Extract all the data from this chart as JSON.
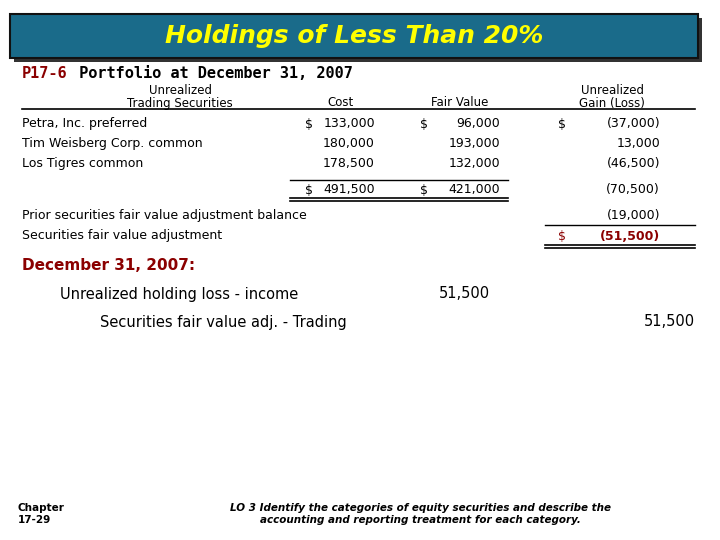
{
  "title": "Holdings of Less Than 20%",
  "title_bg_color": "#1a6b8a",
  "title_text_color": "#ffff00",
  "title_shadow_color": "#333333",
  "subtitle_label": "P17-6",
  "subtitle_text": " Portfolio at December 31, 2007",
  "subtitle_label_color": "#8b0000",
  "subtitle_text_color": "#000000",
  "bg_color": "#ffffff",
  "header_col1": "Trading Securities",
  "header_col2": "Cost",
  "header_col3": "Fair Value",
  "header_col4_line1": "Unrealized",
  "header_col4_line2": "Gain (Loss)",
  "rows": [
    [
      "Petra, Inc. preferred",
      "$",
      "133,000",
      "$",
      "96,000",
      "$",
      "(37,000)"
    ],
    [
      "Tim Weisberg Corp. common",
      "",
      "180,000",
      "",
      "193,000",
      "",
      "13,000"
    ],
    [
      "Los Tigres common",
      "",
      "178,500",
      "",
      "132,000",
      "",
      "(46,500)"
    ]
  ],
  "total_row": [
    "",
    "$",
    "491,500",
    "$",
    "421,000",
    "",
    "(70,500)"
  ],
  "adj_row1_label": "Prior securities fair value adjustment balance",
  "adj_row1_value": "(19,000)",
  "adj_row2_label": "Securities fair value adjustment",
  "adj_row2_dollar": "$",
  "adj_row2_value": "(51,500)",
  "section2_header": "December 31, 2007:",
  "section2_header_color": "#8b0000",
  "section2_row1_label": "Unrealized holding loss - income",
  "section2_row1_value": "51,500",
  "section2_row2_label": "Securities fair value adj. - Trading",
  "section2_row2_value": "51,500",
  "footer_left_line1": "Chapter",
  "footer_left_line2": "17-29",
  "footer_right": "LO 3 Identify the categories of equity securities and describe the\naccounting and reporting treatment for each category.",
  "footer_color": "#000000",
  "table_text_color": "#000000",
  "dark_red": "#8b0000"
}
